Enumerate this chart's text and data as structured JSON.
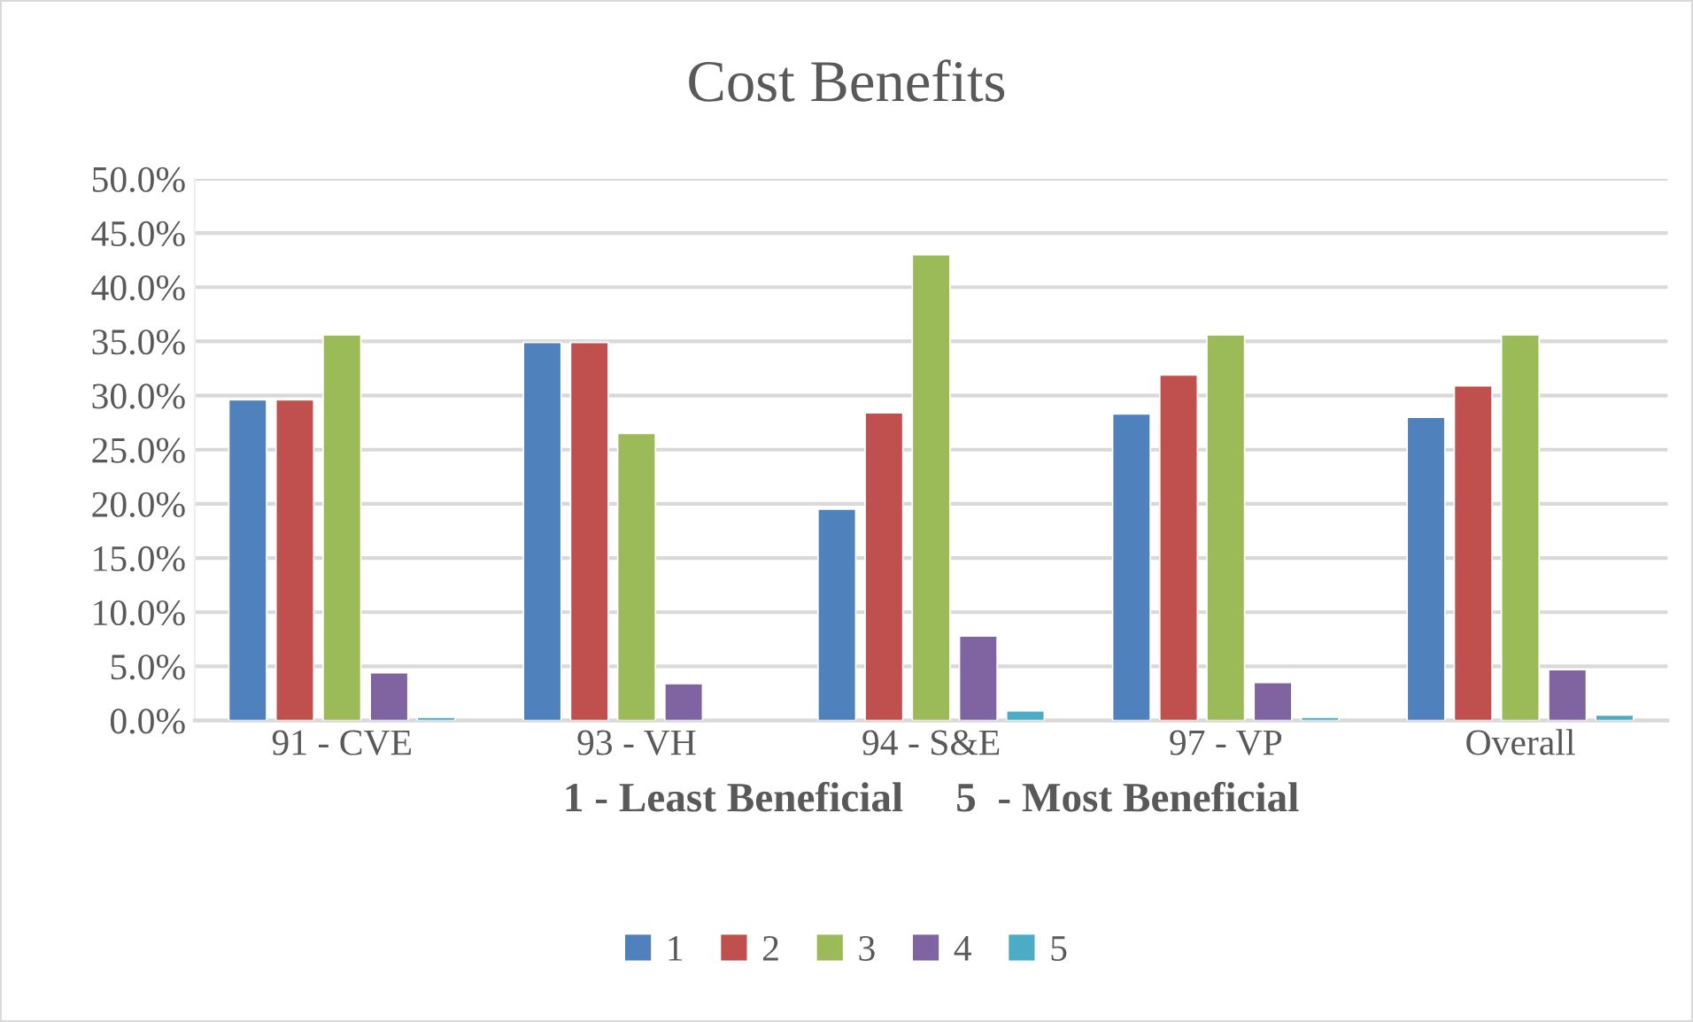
{
  "chart_data": {
    "type": "bar",
    "title": "Cost Benefits",
    "xlabel": "1 - Least Beneficial     5  - Most Beneficial",
    "categories": [
      "91 - CVE",
      "93 - VH",
      "94 - S&E",
      "97 - VP",
      "Overall"
    ],
    "series": [
      {
        "name": "1",
        "color": "#4f81bd",
        "values": [
          29.6,
          34.9,
          19.5,
          28.3,
          28.0
        ]
      },
      {
        "name": "2",
        "color": "#c0504d",
        "values": [
          29.6,
          34.9,
          28.4,
          31.9,
          30.9
        ]
      },
      {
        "name": "3",
        "color": "#9bbb59",
        "values": [
          35.6,
          26.5,
          43.0,
          35.6,
          35.6
        ]
      },
      {
        "name": "4",
        "color": "#8064a2",
        "values": [
          4.4,
          3.4,
          7.8,
          3.5,
          4.7
        ]
      },
      {
        "name": "5",
        "color": "#4bacc6",
        "values": [
          0.3,
          null,
          0.9,
          0.3,
          0.5
        ]
      }
    ],
    "ylim": [
      0,
      50
    ],
    "yticks": [
      {
        "value": 0,
        "label": "0.0%"
      },
      {
        "value": 5,
        "label": "5.0%"
      },
      {
        "value": 10,
        "label": "10.0%"
      },
      {
        "value": 15,
        "label": "15.0%"
      },
      {
        "value": 20,
        "label": "20.0%"
      },
      {
        "value": 25,
        "label": "25.0%"
      },
      {
        "value": 30,
        "label": "30.0%"
      },
      {
        "value": 35,
        "label": "35.0%"
      },
      {
        "value": 40,
        "label": "40.0%"
      },
      {
        "value": 45,
        "label": "45.0%"
      },
      {
        "value": 50,
        "label": "50.0%"
      }
    ],
    "grid": "y",
    "legend": "bottom"
  }
}
